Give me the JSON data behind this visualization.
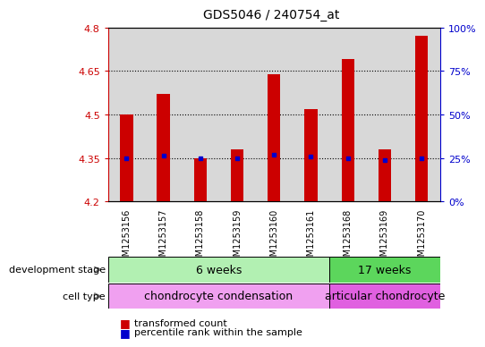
{
  "title": "GDS5046 / 240754_at",
  "samples": [
    "GSM1253156",
    "GSM1253157",
    "GSM1253158",
    "GSM1253159",
    "GSM1253160",
    "GSM1253161",
    "GSM1253168",
    "GSM1253169",
    "GSM1253170"
  ],
  "bar_values": [
    4.5,
    4.57,
    4.35,
    4.38,
    4.64,
    4.52,
    4.69,
    4.38,
    4.77
  ],
  "percentile_values": [
    4.348,
    4.358,
    4.348,
    4.35,
    4.36,
    4.356,
    4.35,
    4.342,
    4.35
  ],
  "bar_color": "#cc0000",
  "percentile_color": "#0000cc",
  "y_min": 4.2,
  "y_max": 4.8,
  "y_ticks": [
    4.2,
    4.35,
    4.5,
    4.65,
    4.8
  ],
  "right_ticks": [
    0,
    25,
    50,
    75,
    100
  ],
  "right_tick_positions": [
    4.2,
    4.35,
    4.5,
    4.65,
    4.8
  ],
  "grid_lines": [
    4.35,
    4.5,
    4.65
  ],
  "dev_stage_6weeks_label": "6 weeks",
  "dev_stage_17weeks_label": "17 weeks",
  "cell_type_condensation_label": "chondrocyte condensation",
  "cell_type_articular_label": "articular chondrocyte",
  "dev_stage_label": "development stage",
  "cell_type_label": "cell type",
  "legend_bar_label": "transformed count",
  "legend_percentile_label": "percentile rank within the sample",
  "light_green": "#b2f0b2",
  "medium_green": "#5cd65c",
  "light_purple": "#f0a0f0",
  "medium_purple": "#e060e0",
  "bg_color": "#ffffff",
  "plot_bg_color": "#ffffff",
  "col_bg_color": "#d8d8d8",
  "axis_color_left": "#cc0000",
  "axis_color_right": "#0000cc"
}
